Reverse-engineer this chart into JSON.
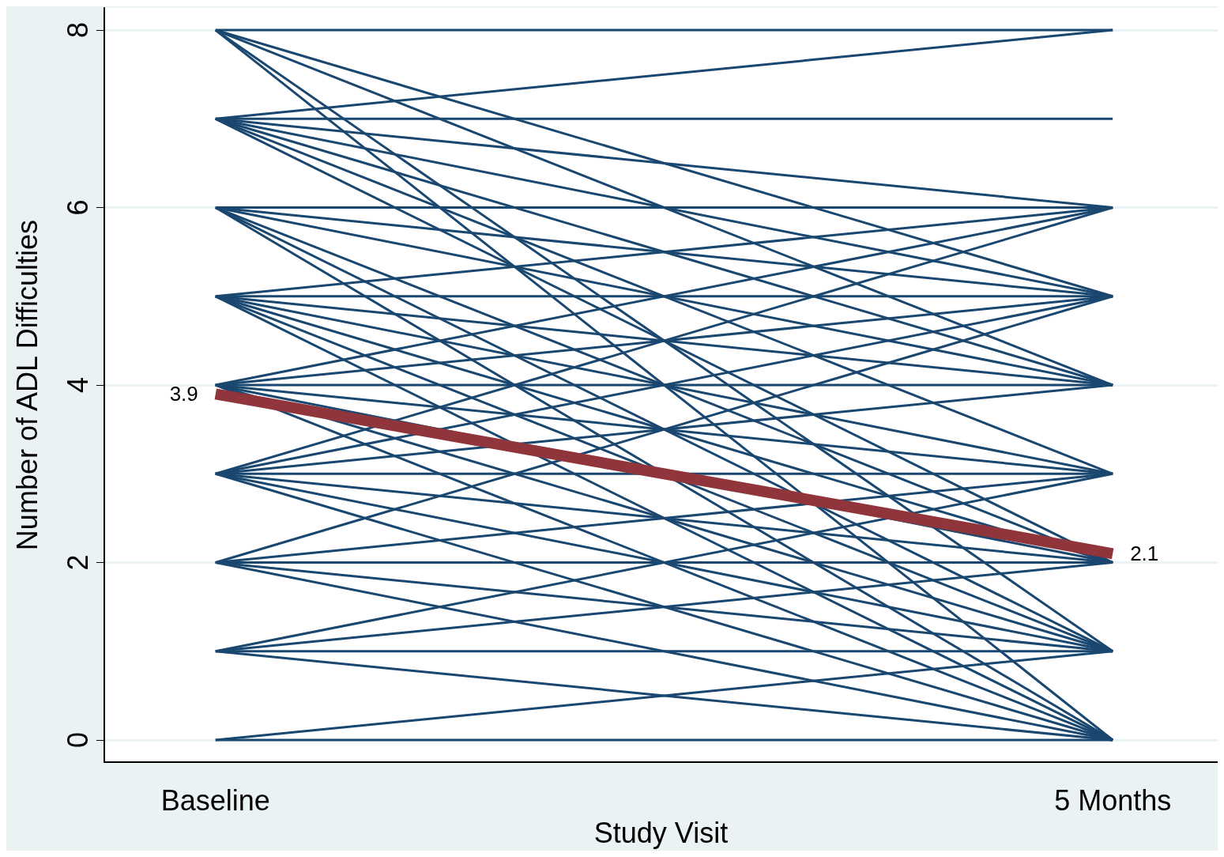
{
  "chart_data": {
    "type": "line",
    "xlabel": "Study Visit",
    "ylabel": "Number of ADL Difficulties",
    "categories": [
      "Baseline",
      "5 Months"
    ],
    "ylim": [
      -0.25,
      8.25
    ],
    "yticks": [
      0,
      2,
      4,
      6,
      8
    ],
    "grid": "y",
    "marker": "none",
    "series": [
      {
        "color": "#1a476f",
        "values": [
          8,
          8
        ]
      },
      {
        "color": "#1a476f",
        "values": [
          8,
          5
        ]
      },
      {
        "color": "#1a476f",
        "values": [
          8,
          4
        ]
      },
      {
        "color": "#1a476f",
        "values": [
          8,
          1
        ]
      },
      {
        "color": "#1a476f",
        "values": [
          8,
          0
        ]
      },
      {
        "color": "#1a476f",
        "values": [
          7,
          8
        ]
      },
      {
        "color": "#1a476f",
        "values": [
          7,
          7
        ]
      },
      {
        "color": "#1a476f",
        "values": [
          7,
          6
        ]
      },
      {
        "color": "#1a476f",
        "values": [
          7,
          5
        ]
      },
      {
        "color": "#1a476f",
        "values": [
          7,
          4
        ]
      },
      {
        "color": "#1a476f",
        "values": [
          7,
          3
        ]
      },
      {
        "color": "#1a476f",
        "values": [
          7,
          2
        ]
      },
      {
        "color": "#1a476f",
        "values": [
          6,
          6
        ]
      },
      {
        "color": "#1a476f",
        "values": [
          6,
          5
        ]
      },
      {
        "color": "#1a476f",
        "values": [
          6,
          4
        ]
      },
      {
        "color": "#1a476f",
        "values": [
          6,
          2
        ]
      },
      {
        "color": "#1a476f",
        "values": [
          6,
          1
        ]
      },
      {
        "color": "#1a476f",
        "values": [
          6,
          0
        ]
      },
      {
        "color": "#1a476f",
        "values": [
          5,
          6
        ]
      },
      {
        "color": "#1a476f",
        "values": [
          5,
          5
        ]
      },
      {
        "color": "#1a476f",
        "values": [
          5,
          4
        ]
      },
      {
        "color": "#1a476f",
        "values": [
          5,
          3
        ]
      },
      {
        "color": "#1a476f",
        "values": [
          5,
          2
        ]
      },
      {
        "color": "#1a476f",
        "values": [
          5,
          1
        ]
      },
      {
        "color": "#1a476f",
        "values": [
          5,
          0
        ]
      },
      {
        "color": "#1a476f",
        "values": [
          4,
          6
        ]
      },
      {
        "color": "#1a476f",
        "values": [
          4,
          5
        ]
      },
      {
        "color": "#1a476f",
        "values": [
          4,
          4
        ]
      },
      {
        "color": "#1a476f",
        "values": [
          4,
          3
        ]
      },
      {
        "color": "#1a476f",
        "values": [
          4,
          2
        ]
      },
      {
        "color": "#1a476f",
        "values": [
          4,
          1
        ]
      },
      {
        "color": "#1a476f",
        "values": [
          4,
          0
        ]
      },
      {
        "color": "#1a476f",
        "values": [
          3,
          6
        ]
      },
      {
        "color": "#1a476f",
        "values": [
          3,
          5
        ]
      },
      {
        "color": "#1a476f",
        "values": [
          3,
          4
        ]
      },
      {
        "color": "#1a476f",
        "values": [
          3,
          3
        ]
      },
      {
        "color": "#1a476f",
        "values": [
          3,
          2
        ]
      },
      {
        "color": "#1a476f",
        "values": [
          3,
          1
        ]
      },
      {
        "color": "#1a476f",
        "values": [
          3,
          0
        ]
      },
      {
        "color": "#1a476f",
        "values": [
          2,
          5
        ]
      },
      {
        "color": "#1a476f",
        "values": [
          2,
          3
        ]
      },
      {
        "color": "#1a476f",
        "values": [
          2,
          2
        ]
      },
      {
        "color": "#1a476f",
        "values": [
          2,
          1
        ]
      },
      {
        "color": "#1a476f",
        "values": [
          2,
          0
        ]
      },
      {
        "color": "#1a476f",
        "values": [
          1,
          3
        ]
      },
      {
        "color": "#1a476f",
        "values": [
          1,
          2
        ]
      },
      {
        "color": "#1a476f",
        "values": [
          1,
          1
        ]
      },
      {
        "color": "#1a476f",
        "values": [
          1,
          0
        ]
      },
      {
        "color": "#1a476f",
        "values": [
          0,
          1
        ]
      },
      {
        "color": "#1a476f",
        "values": [
          0,
          0
        ]
      },
      {
        "color": "#90353b",
        "values": [
          3.9,
          2.1
        ],
        "value_labels": [
          "3.9",
          "2.1"
        ]
      }
    ]
  }
}
